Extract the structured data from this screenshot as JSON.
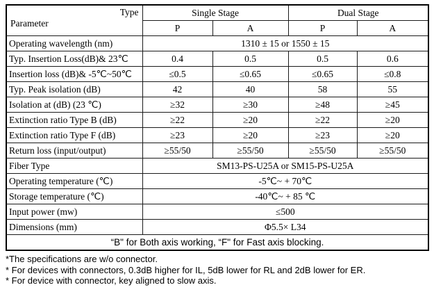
{
  "table": {
    "header": {
      "type_label": "Type",
      "parameter_label": "Parameter",
      "groups": [
        {
          "label": "Single Stage"
        },
        {
          "label": "Dual Stage"
        }
      ],
      "subcols": [
        "P",
        "A",
        "P",
        "A"
      ]
    },
    "rows": [
      {
        "param": "Operating wavelength (nm)",
        "span": "1310 ± 15 or 1550 ± 15"
      },
      {
        "param": "Typ. Insertion Loss(dB)& 23℃",
        "values": [
          "0.4",
          "0.5",
          "0.5",
          "0.6"
        ]
      },
      {
        "param": "Insertion loss (dB)& -5℃~50℃",
        "values": [
          "≤0.5",
          "≤0.65",
          "≤0.65",
          "≤0.8"
        ]
      },
      {
        "param": "Typ. Peak isolation (dB)",
        "values": [
          "42",
          "40",
          "58",
          "55"
        ]
      },
      {
        "param": "Isolation at (dB) (23 ℃)",
        "values": [
          "≥32",
          "≥30",
          "≥48",
          "≥45"
        ]
      },
      {
        "param": "Extinction ratio Type B (dB)",
        "values": [
          "≥22",
          "≥20",
          "≥22",
          "≥20"
        ]
      },
      {
        "param": "Extinction ratio Type F (dB)",
        "values": [
          "≥23",
          "≥20",
          "≥23",
          "≥20"
        ]
      },
      {
        "param": "Return loss (input/output)",
        "values": [
          "≥55/50",
          "≥55/50",
          "≥55/50",
          "≥55/50"
        ]
      },
      {
        "param": "Fiber Type",
        "span": "SM13-PS-U25A or SM15-PS-U25A"
      },
      {
        "param": "Operating temperature (℃)",
        "span": "-5℃~ + 70℃"
      },
      {
        "param": "Storage temperature (℃)",
        "span": "-40℃~ + 85 ℃"
      },
      {
        "param": "Input power (mw)",
        "span": "≤500"
      },
      {
        "param": "Dimensions (mm)",
        "span": "Φ5.5× L34"
      }
    ],
    "footer_note": "“B\" for Both axis working, “F\" for Fast axis blocking."
  },
  "footnotes": [
    "*The specifications are w/o connector.",
    "* For devices with connectors, 0.3dB higher for IL, 5dB lower for RL and 2dB lower for ER.",
    "* For device with connector, key aligned to slow axis."
  ]
}
